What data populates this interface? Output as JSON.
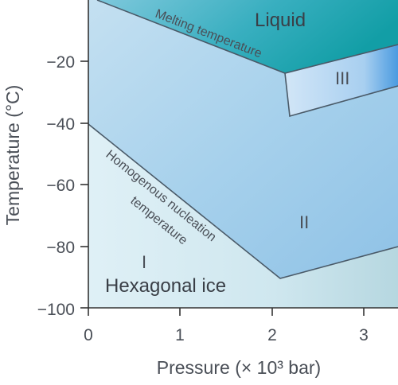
{
  "diagram": {
    "y_axis_label": "Temperature (°C)",
    "x_axis_label": "Pressure (× 10³ bar)",
    "y_ticks": [
      "−20",
      "−40",
      "−60",
      "−80",
      "−100"
    ],
    "x_ticks": [
      "0",
      "1",
      "2",
      "3"
    ],
    "regions": {
      "liquid": "Liquid",
      "ice_three": "III",
      "ice_two": "II",
      "ice_one_numeral": "I",
      "ice_one_name": "Hexagonal ice"
    },
    "curves": {
      "melting": "Melting temperature",
      "nucleation_line1": "Homogenous nucleation",
      "nucleation_line2": "temperature"
    }
  },
  "colors": {
    "liquid_top": "#1aa3a8",
    "ice_two_fill": "#9fcbea",
    "ice_one_fill": "#d6eaf3",
    "ice_three_fill": "#bcd9f2",
    "line": "#4a5a68",
    "axis": "#333333",
    "text": "#4a4f57"
  }
}
